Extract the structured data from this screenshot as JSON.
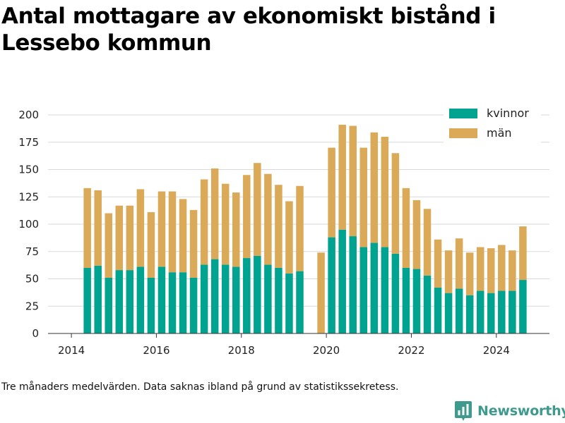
{
  "header": {
    "title": "Antal mottagare av ekonomiskt bistånd i Lessebo kommun"
  },
  "footnote": "Tre månaders medelvärden. Data saknas ibland på grund av statistikssekretess.",
  "brand": {
    "name": "Newsworthy",
    "icon": "newsworthy-logo-icon"
  },
  "chart_data": {
    "type": "bar",
    "stacked": true,
    "ylim": [
      0,
      200
    ],
    "yticks": [
      0,
      25,
      50,
      75,
      100,
      125,
      150,
      175,
      200
    ],
    "xlim": [
      2013.45,
      2025.25
    ],
    "xticks": [
      2014,
      2016,
      2018,
      2020,
      2022,
      2024
    ],
    "grid": "horizontal",
    "legend_position": "top-right",
    "x": [
      2014.375,
      2014.625,
      2014.875,
      2015.125,
      2015.375,
      2015.625,
      2015.875,
      2016.125,
      2016.375,
      2016.625,
      2016.875,
      2017.125,
      2017.375,
      2017.625,
      2017.875,
      2018.125,
      2018.375,
      2018.625,
      2018.875,
      2019.125,
      2019.375,
      2019.875,
      2020.125,
      2020.375,
      2020.625,
      2020.875,
      2021.125,
      2021.375,
      2021.625,
      2021.875,
      2022.125,
      2022.375,
      2022.625,
      2022.875,
      2023.125,
      2023.375,
      2023.625,
      2023.875,
      2024.125,
      2024.375,
      2024.625
    ],
    "series": [
      {
        "name": "kvinnor",
        "color": "#00a390",
        "values": [
          60,
          62,
          51,
          58,
          58,
          61,
          51,
          61,
          56,
          56,
          51,
          63,
          68,
          63,
          61,
          69,
          71,
          63,
          60,
          55,
          57,
          0,
          88,
          95,
          89,
          79,
          83,
          79,
          73,
          60,
          59,
          53,
          42,
          37,
          41,
          35,
          39,
          37,
          39,
          39,
          49
        ]
      },
      {
        "name": "män",
        "color": "#daaa58",
        "values": [
          73,
          69,
          59,
          59,
          59,
          71,
          60,
          69,
          74,
          67,
          62,
          78,
          83,
          74,
          68,
          76,
          85,
          83,
          76,
          66,
          78,
          74,
          82,
          96,
          101,
          91,
          101,
          101,
          92,
          73,
          63,
          61,
          44,
          39,
          46,
          39,
          40,
          41,
          42,
          37,
          49
        ]
      }
    ]
  }
}
